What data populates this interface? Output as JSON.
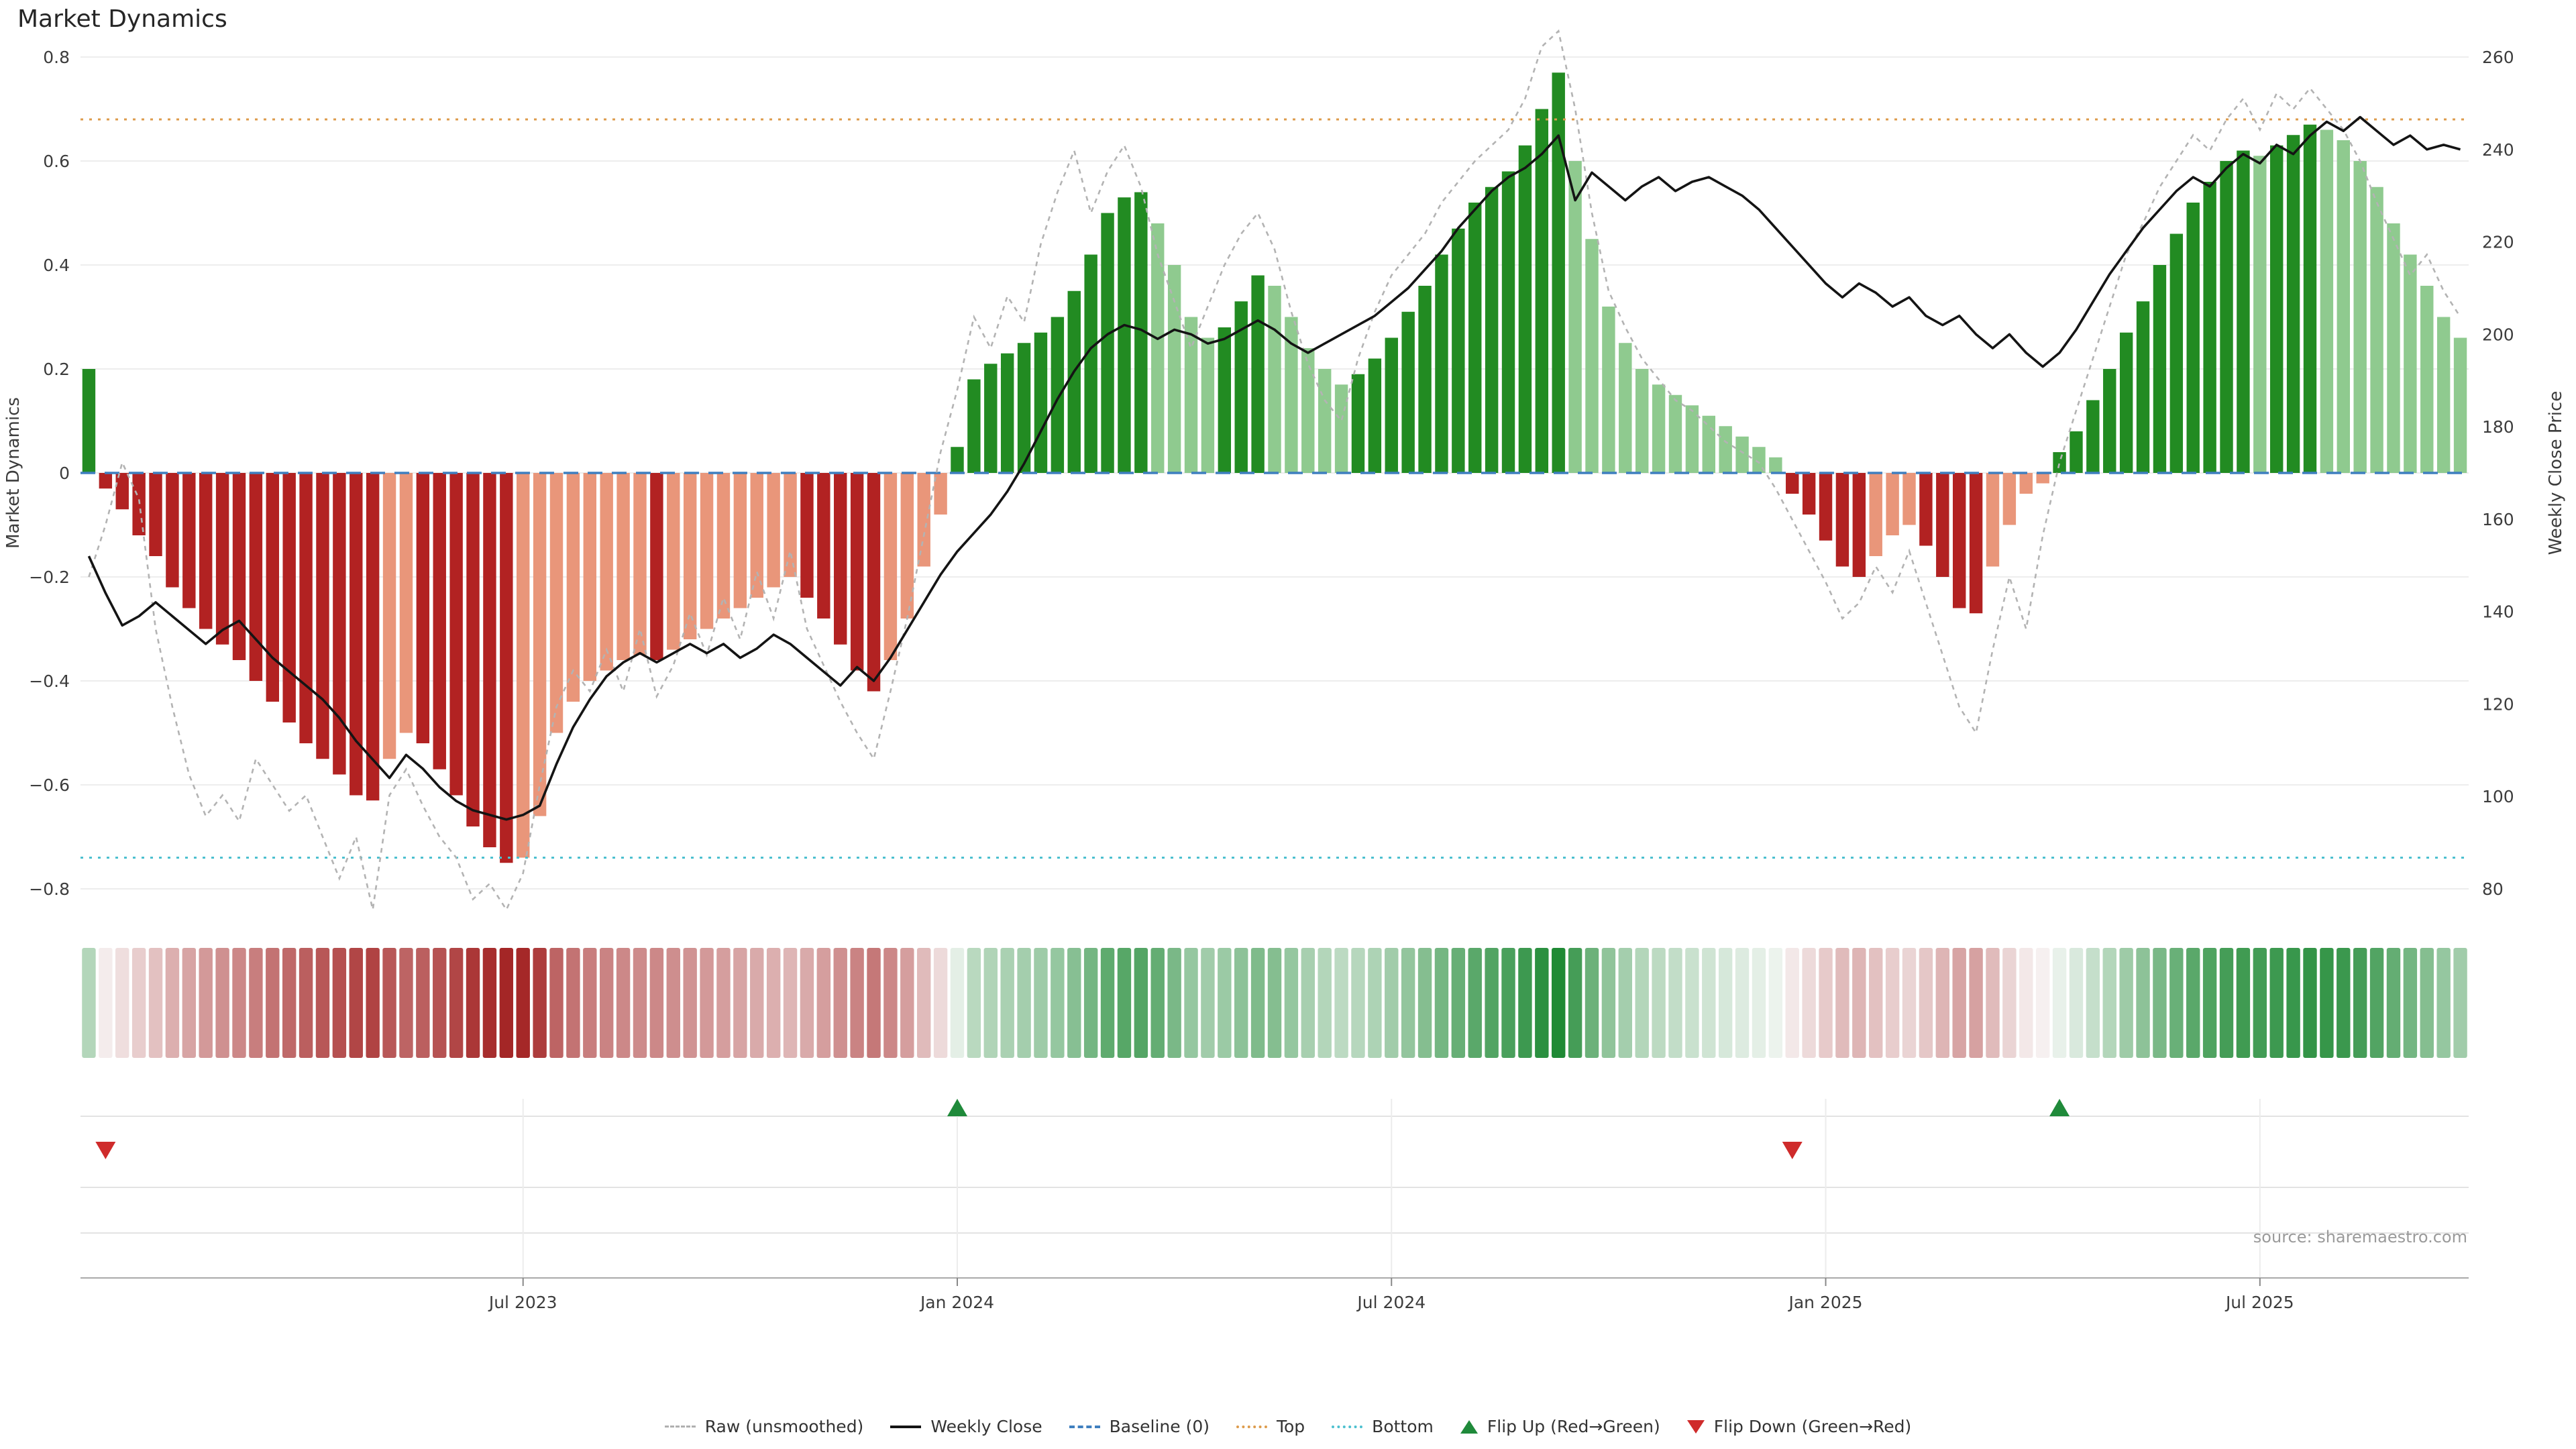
{
  "title": "Market Dynamics",
  "source": "source: sharemaestro.com",
  "axes": {
    "y_left_label": "Market Dynamics",
    "y_right_label": "Weekly Close Price",
    "y_left_ticks": [
      0.8,
      0.6,
      0.4,
      0.2,
      0,
      -0.2,
      -0.4,
      -0.6,
      -0.8
    ],
    "y_right_ticks": [
      260,
      240,
      220,
      200,
      180,
      160,
      140,
      120,
      100,
      80
    ],
    "x_ticks": [
      {
        "index": 26,
        "label": "Jul 2023"
      },
      {
        "index": 52,
        "label": "Jan 2024"
      },
      {
        "index": 78,
        "label": "Jul 2024"
      },
      {
        "index": 104,
        "label": "Jan 2025"
      },
      {
        "index": 130,
        "label": "Jul 2025"
      }
    ]
  },
  "legend": {
    "items": [
      {
        "label": "Raw (unsmoothed)"
      },
      {
        "label": "Weekly Close"
      },
      {
        "label": "Baseline (0)"
      },
      {
        "label": "Top"
      },
      {
        "label": "Bottom"
      },
      {
        "label": "Flip Up (Red→Green)"
      },
      {
        "label": "Flip Down (Green→Red)"
      }
    ]
  },
  "colors": {
    "bar_strong_negative": "#b22222",
    "bar_weak_negative": "#e9967a",
    "bar_strong_positive": "#228b22",
    "bar_weak_positive": "#8fca8f",
    "raw_line": "#b3b3b3",
    "close_line": "#141414",
    "baseline": "#3f7fbf",
    "top_line": "#dd9b4b",
    "bottom_line": "#4cc0cf",
    "flip_up": "#1f8a3a",
    "flip_down": "#cf2b2b",
    "heatmap_negative": "#a42626",
    "heatmap_positive": "#1f8a35"
  },
  "chart_data": {
    "type": "bar",
    "n_points": 143,
    "ylim_left": [
      -0.8,
      0.8
    ],
    "ylim_right": [
      80,
      260
    ],
    "baseline": 0,
    "top_threshold": 0.68,
    "bottom_threshold": -0.74,
    "series": [
      {
        "name": "Market Dynamics (bars)",
        "axis": "left",
        "values": [
          0.2,
          -0.03,
          -0.07,
          -0.12,
          -0.16,
          -0.22,
          -0.26,
          -0.3,
          -0.33,
          -0.36,
          -0.4,
          -0.44,
          -0.48,
          -0.52,
          -0.55,
          -0.58,
          -0.62,
          -0.63,
          -0.55,
          -0.5,
          -0.52,
          -0.57,
          -0.62,
          -0.68,
          -0.72,
          -0.75,
          -0.74,
          -0.66,
          -0.5,
          -0.44,
          -0.4,
          -0.38,
          -0.36,
          -0.35,
          -0.36,
          -0.34,
          -0.32,
          -0.3,
          -0.28,
          -0.26,
          -0.24,
          -0.22,
          -0.2,
          -0.24,
          -0.28,
          -0.33,
          -0.38,
          -0.42,
          -0.36,
          -0.28,
          -0.18,
          -0.08,
          0.05,
          0.18,
          0.21,
          0.23,
          0.25,
          0.27,
          0.3,
          0.35,
          0.42,
          0.5,
          0.53,
          0.54,
          0.48,
          0.4,
          0.3,
          0.26,
          0.28,
          0.33,
          0.38,
          0.36,
          0.3,
          0.24,
          0.2,
          0.17,
          0.19,
          0.22,
          0.26,
          0.31,
          0.36,
          0.42,
          0.47,
          0.52,
          0.55,
          0.58,
          0.63,
          0.7,
          0.77,
          0.6,
          0.45,
          0.32,
          0.25,
          0.2,
          0.17,
          0.15,
          0.13,
          0.11,
          0.09,
          0.07,
          0.05,
          0.03,
          -0.04,
          -0.08,
          -0.13,
          -0.18,
          -0.2,
          -0.16,
          -0.12,
          -0.1,
          -0.14,
          -0.2,
          -0.26,
          -0.27,
          -0.18,
          -0.1,
          -0.04,
          -0.02,
          0.04,
          0.08,
          0.14,
          0.2,
          0.27,
          0.33,
          0.4,
          0.46,
          0.52,
          0.56,
          0.6,
          0.62,
          0.61,
          0.63,
          0.65,
          0.67,
          0.66,
          0.64,
          0.6,
          0.55,
          0.48,
          0.42,
          0.36,
          0.3,
          0.26
        ]
      },
      {
        "name": "Raw (unsmoothed)",
        "axis": "left",
        "values": [
          -0.2,
          -0.1,
          0.02,
          -0.05,
          -0.3,
          -0.45,
          -0.58,
          -0.66,
          -0.62,
          -0.67,
          -0.55,
          -0.6,
          -0.65,
          -0.62,
          -0.7,
          -0.78,
          -0.7,
          -0.85,
          -0.62,
          -0.57,
          -0.64,
          -0.7,
          -0.74,
          -0.82,
          -0.79,
          -0.88,
          -0.77,
          -0.6,
          -0.45,
          -0.38,
          -0.42,
          -0.34,
          -0.42,
          -0.3,
          -0.43,
          -0.37,
          -0.27,
          -0.35,
          -0.24,
          -0.32,
          -0.19,
          -0.28,
          -0.15,
          -0.3,
          -0.37,
          -0.44,
          -0.5,
          -0.55,
          -0.42,
          -0.28,
          -0.12,
          0.04,
          0.16,
          0.3,
          0.24,
          0.34,
          0.29,
          0.44,
          0.54,
          0.62,
          0.5,
          0.58,
          0.63,
          0.55,
          0.42,
          0.33,
          0.24,
          0.32,
          0.4,
          0.46,
          0.5,
          0.43,
          0.31,
          0.21,
          0.14,
          0.1,
          0.22,
          0.31,
          0.38,
          0.42,
          0.46,
          0.52,
          0.56,
          0.6,
          0.63,
          0.66,
          0.72,
          0.82,
          0.9,
          0.7,
          0.5,
          0.35,
          0.28,
          0.22,
          0.18,
          0.14,
          0.12,
          0.09,
          0.06,
          0.04,
          0.02,
          -0.03,
          -0.09,
          -0.15,
          -0.21,
          -0.28,
          -0.25,
          -0.18,
          -0.23,
          -0.15,
          -0.25,
          -0.35,
          -0.45,
          -0.5,
          -0.34,
          -0.2,
          -0.3,
          -0.12,
          0.02,
          0.12,
          0.22,
          0.32,
          0.42,
          0.48,
          0.55,
          0.6,
          0.65,
          0.62,
          0.68,
          0.72,
          0.66,
          0.73,
          0.7,
          0.74,
          0.7,
          0.66,
          0.6,
          0.52,
          0.45,
          0.38,
          0.42,
          0.35,
          0.3
        ]
      },
      {
        "name": "Weekly Close",
        "axis": "right",
        "values": [
          152,
          144,
          137,
          139,
          142,
          139,
          136,
          133,
          136,
          138,
          134,
          130,
          127,
          124,
          121,
          117,
          112,
          108,
          104,
          109,
          106,
          102,
          99,
          97,
          96,
          95,
          96,
          98,
          107,
          115,
          121,
          126,
          129,
          131,
          129,
          131,
          133,
          131,
          133,
          130,
          132,
          135,
          133,
          130,
          127,
          124,
          128,
          125,
          130,
          136,
          142,
          148,
          153,
          157,
          161,
          166,
          172,
          179,
          186,
          192,
          197,
          200,
          202,
          201,
          199,
          201,
          200,
          198,
          199,
          201,
          203,
          201,
          198,
          196,
          198,
          200,
          202,
          204,
          207,
          210,
          214,
          218,
          223,
          227,
          231,
          234,
          236,
          239,
          243,
          229,
          235,
          232,
          229,
          232,
          234,
          231,
          233,
          234,
          232,
          230,
          227,
          223,
          219,
          215,
          211,
          208,
          211,
          209,
          206,
          208,
          204,
          202,
          204,
          200,
          197,
          200,
          196,
          193,
          196,
          201,
          207,
          213,
          218,
          223,
          227,
          231,
          234,
          232,
          236,
          239,
          237,
          241,
          239,
          243,
          246,
          244,
          247,
          244,
          241,
          243,
          240,
          241,
          240
        ]
      }
    ],
    "flips": [
      {
        "index": 1,
        "type": "down"
      },
      {
        "index": 52,
        "type": "up"
      },
      {
        "index": 102,
        "type": "down"
      },
      {
        "index": 118,
        "type": "up"
      }
    ]
  }
}
